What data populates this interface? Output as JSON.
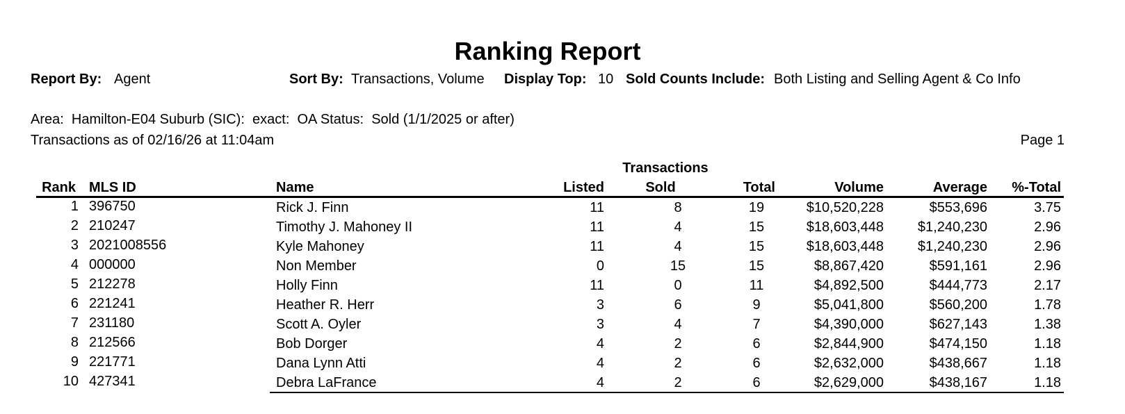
{
  "header": {
    "title": "Ranking Report",
    "report_by_label": "Report By:",
    "report_by_value": "Agent",
    "sort_by_label": "Sort By:",
    "sort_by_value": "Transactions, Volume",
    "display_top_label": "Display Top:",
    "display_top_value": "10",
    "sold_counts_label": "Sold Counts Include:",
    "sold_counts_value": "Both Listing and Selling Agent & Co Info",
    "area": "Area:  Hamilton-E04 Suburb (SIC):  exact:  OA Status:  Sold (1/1/2025 or after)",
    "as_of": "Transactions as of 02/16/26 at 11:04am",
    "page": "Page 1"
  },
  "table": {
    "group_header": "Transactions",
    "columns": [
      "Rank",
      "MLS ID",
      "Name",
      "Listed",
      "Sold",
      "Total",
      "Volume",
      "Average",
      "%-Total"
    ],
    "rows": [
      [
        1,
        "396750",
        "Rick J. Finn",
        11,
        8,
        19,
        "$10,520,228",
        "$553,696",
        3.75
      ],
      [
        2,
        "210247",
        "Timothy J. Mahoney II",
        11,
        4,
        15,
        "$18,603,448",
        "$1,240,230",
        2.96
      ],
      [
        3,
        "2021008556",
        "Kyle Mahoney",
        11,
        4,
        15,
        "$18,603,448",
        "$1,240,230",
        2.96
      ],
      [
        4,
        "000000",
        "Non Member",
        0,
        15,
        15,
        "$8,867,420",
        "$591,161",
        2.96
      ],
      [
        5,
        "212278",
        "Holly Finn",
        11,
        0,
        11,
        "$4,892,500",
        "$444,773",
        2.17
      ],
      [
        6,
        "221241",
        "Heather R. Herr",
        3,
        6,
        9,
        "$5,041,800",
        "$560,200",
        1.78
      ],
      [
        7,
        "231180",
        "Scott A. Oyler",
        3,
        4,
        7,
        "$4,390,000",
        "$627,143",
        1.38
      ],
      [
        8,
        "212566",
        "Bob Dorger",
        4,
        2,
        6,
        "$2,844,900",
        "$474,150",
        1.18
      ],
      [
        9,
        "221771",
        "Dana Lynn Atti",
        4,
        2,
        6,
        "$2,632,000",
        "$438,667",
        1.18
      ],
      [
        10,
        "427341",
        "Debra LaFrance",
        4,
        2,
        6,
        "$2,629,000",
        "$438,167",
        1.18
      ]
    ]
  }
}
